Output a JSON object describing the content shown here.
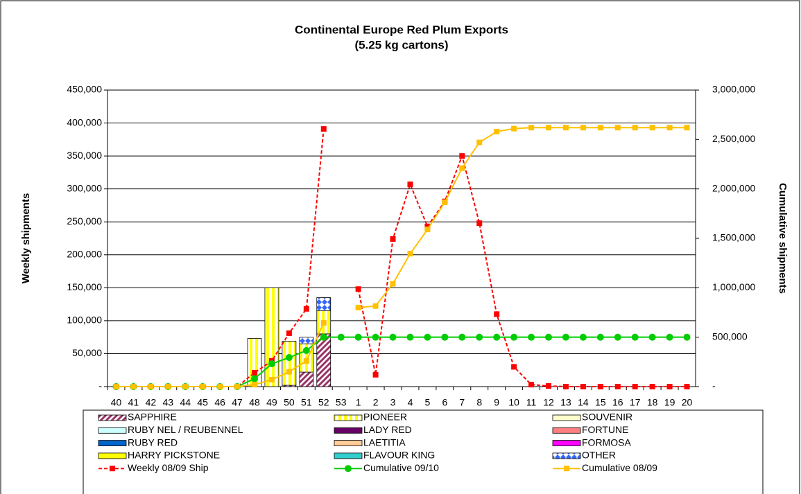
{
  "chart_data": {
    "type": "bar",
    "title": "Continental Europe Red Plum Exports",
    "subtitle": "(5.25 kg cartons)",
    "y_label": "Weekly shipments",
    "y2_label": "Cumulative shipments",
    "categories": [
      "40",
      "41",
      "42",
      "43",
      "44",
      "45",
      "46",
      "47",
      "48",
      "49",
      "50",
      "51",
      "52",
      "53",
      "1",
      "2",
      "3",
      "4",
      "5",
      "6",
      "7",
      "8",
      "9",
      "10",
      "11",
      "12",
      "13",
      "14",
      "15",
      "16",
      "17",
      "18",
      "19",
      "20"
    ],
    "ylim": [
      0,
      450000
    ],
    "yticks": [
      {
        "value": 0,
        "label": "-"
      },
      {
        "value": 50000,
        "label": "50,000"
      },
      {
        "value": 100000,
        "label": "100,000"
      },
      {
        "value": 150000,
        "label": "150,000"
      },
      {
        "value": 200000,
        "label": "200,000"
      },
      {
        "value": 250000,
        "label": "250,000"
      },
      {
        "value": 300000,
        "label": "300,000"
      },
      {
        "value": 350000,
        "label": "350,000"
      },
      {
        "value": 400000,
        "label": "400,000"
      },
      {
        "value": 450000,
        "label": "450,000"
      }
    ],
    "y2lim": [
      0,
      3000000
    ],
    "y2ticks": [
      {
        "value": 0,
        "label": "-"
      },
      {
        "value": 500000,
        "label": "500,000"
      },
      {
        "value": 1000000,
        "label": "1,000,000"
      },
      {
        "value": 1500000,
        "label": "1,500,000"
      },
      {
        "value": 2000000,
        "label": "2,000,000"
      },
      {
        "value": 2500000,
        "label": "2,500,000"
      },
      {
        "value": 3000000,
        "label": "3,000,000"
      }
    ],
    "grid": true,
    "legend": "bottom",
    "series": [
      {
        "name": "SAPPHIRE",
        "color": "#993366",
        "pattern": "diagonal",
        "values": [
          null,
          null,
          null,
          null,
          null,
          null,
          null,
          null,
          null,
          null,
          2000,
          22000,
          80000,
          null,
          null,
          null,
          null,
          null,
          null,
          null,
          null,
          null,
          null,
          null,
          null,
          null,
          null,
          null,
          null,
          null,
          null,
          null,
          null,
          null
        ]
      },
      {
        "name": "PIONEER",
        "color": "#ffff00",
        "pattern": "vertical",
        "values": [
          null,
          null,
          null,
          null,
          null,
          null,
          null,
          null,
          73000,
          150000,
          67000,
          43000,
          35000,
          null,
          null,
          null,
          null,
          null,
          null,
          null,
          null,
          null,
          null,
          null,
          null,
          null,
          null,
          null,
          null,
          null,
          null,
          null,
          null,
          null
        ]
      },
      {
        "name": "SOUVENIR",
        "color": "#ffffcc",
        "values": [
          null,
          null,
          null,
          null,
          null,
          null,
          null,
          null,
          null,
          null,
          null,
          null,
          null,
          null,
          null,
          null,
          null,
          null,
          null,
          null,
          null,
          null,
          null,
          null,
          null,
          null,
          null,
          null,
          null,
          null,
          null,
          null,
          null,
          null
        ]
      },
      {
        "name": "RUBY NEL / REUBENNEL",
        "color": "#ccffff",
        "values": [
          null,
          null,
          null,
          null,
          null,
          null,
          null,
          null,
          null,
          null,
          null,
          null,
          null,
          null,
          null,
          null,
          null,
          null,
          null,
          null,
          null,
          null,
          null,
          null,
          null,
          null,
          null,
          null,
          null,
          null,
          null,
          null,
          null,
          null
        ]
      },
      {
        "name": "LADY RED",
        "color": "#660066",
        "values": [
          null,
          null,
          null,
          null,
          null,
          null,
          null,
          null,
          null,
          null,
          null,
          null,
          null,
          null,
          null,
          null,
          null,
          null,
          null,
          null,
          null,
          null,
          null,
          null,
          null,
          null,
          null,
          null,
          null,
          null,
          null,
          null,
          null,
          null
        ]
      },
      {
        "name": "FORTUNE",
        "color": "#ff8080",
        "values": [
          null,
          null,
          null,
          null,
          null,
          null,
          null,
          null,
          null,
          null,
          null,
          null,
          null,
          null,
          null,
          null,
          null,
          null,
          null,
          null,
          null,
          null,
          null,
          null,
          null,
          null,
          null,
          null,
          null,
          null,
          null,
          null,
          null,
          null
        ]
      },
      {
        "name": "RUBY RED",
        "color": "#0066cc",
        "values": [
          null,
          null,
          null,
          null,
          null,
          null,
          null,
          null,
          null,
          null,
          null,
          null,
          null,
          null,
          null,
          null,
          null,
          null,
          null,
          null,
          null,
          null,
          null,
          null,
          null,
          null,
          null,
          null,
          null,
          null,
          null,
          null,
          null,
          null
        ]
      },
      {
        "name": "LAETITIA",
        "color": "#ffcc99",
        "values": [
          null,
          null,
          null,
          null,
          null,
          null,
          null,
          null,
          null,
          null,
          null,
          null,
          null,
          null,
          null,
          null,
          null,
          null,
          null,
          null,
          null,
          null,
          null,
          null,
          null,
          null,
          null,
          null,
          null,
          null,
          null,
          null,
          null,
          null
        ]
      },
      {
        "name": "FORMOSA",
        "color": "#ff00ff",
        "values": [
          null,
          null,
          null,
          null,
          null,
          null,
          null,
          null,
          null,
          null,
          null,
          null,
          null,
          null,
          null,
          null,
          null,
          null,
          null,
          null,
          null,
          null,
          null,
          null,
          null,
          null,
          null,
          null,
          null,
          null,
          null,
          null,
          null,
          null
        ]
      },
      {
        "name": "HARRY PICKSTONE",
        "color": "#ffff00",
        "values": [
          null,
          null,
          null,
          null,
          null,
          null,
          null,
          null,
          null,
          null,
          null,
          null,
          null,
          null,
          null,
          null,
          null,
          null,
          null,
          null,
          null,
          null,
          null,
          null,
          null,
          null,
          null,
          null,
          null,
          null,
          null,
          null,
          null,
          null
        ]
      },
      {
        "name": "FLAVOUR KING",
        "color": "#33cccc",
        "values": [
          null,
          null,
          null,
          null,
          null,
          null,
          null,
          null,
          null,
          null,
          null,
          null,
          null,
          null,
          null,
          null,
          null,
          null,
          null,
          null,
          null,
          null,
          null,
          null,
          null,
          null,
          null,
          null,
          null,
          null,
          null,
          null,
          null,
          null
        ]
      },
      {
        "name": "OTHER",
        "color": "#3366ff",
        "pattern": "diamond",
        "values": [
          null,
          null,
          null,
          null,
          null,
          null,
          null,
          null,
          null,
          null,
          null,
          10000,
          20000,
          null,
          null,
          null,
          null,
          null,
          null,
          null,
          null,
          null,
          null,
          null,
          null,
          null,
          null,
          null,
          null,
          null,
          null,
          null,
          null,
          null
        ]
      },
      {
        "name": "Weekly 08/09 Ship",
        "type": "line",
        "color": "#ff0000",
        "dash": true,
        "marker": "square",
        "values": [
          0,
          0,
          0,
          0,
          0,
          0,
          0,
          0,
          21000,
          39000,
          81000,
          118000,
          391000,
          null,
          148000,
          18000,
          224000,
          307000,
          243000,
          281000,
          350000,
          248000,
          110000,
          30000,
          3000,
          1000,
          0,
          0,
          0,
          0,
          0,
          0,
          0,
          0
        ]
      },
      {
        "name": "Cumulative 09/10",
        "type": "line",
        "axis": "y2",
        "color": "#00cc00",
        "marker": "circle",
        "values": [
          0,
          0,
          0,
          0,
          0,
          0,
          0,
          0,
          80000,
          231000,
          294000,
          365000,
          500000,
          500000,
          500000,
          500000,
          500000,
          500000,
          500000,
          500000,
          500000,
          500000,
          500000,
          500000,
          500000,
          500000,
          500000,
          500000,
          500000,
          500000,
          500000,
          500000,
          500000,
          500000
        ]
      },
      {
        "name": "Cumulative 08/09",
        "type": "line",
        "axis": "y2",
        "color": "#ffc000",
        "marker": "square",
        "values": [
          0,
          0,
          0,
          0,
          0,
          0,
          0,
          0,
          20000,
          70000,
          150000,
          260000,
          645000,
          null,
          800000,
          815000,
          1040000,
          1345000,
          1590000,
          1865000,
          2210000,
          2470000,
          2580000,
          2610000,
          2620000,
          2620000,
          2620000,
          2620000,
          2620000,
          2620000,
          2620000,
          2620000,
          2620000,
          2620000
        ]
      }
    ]
  }
}
